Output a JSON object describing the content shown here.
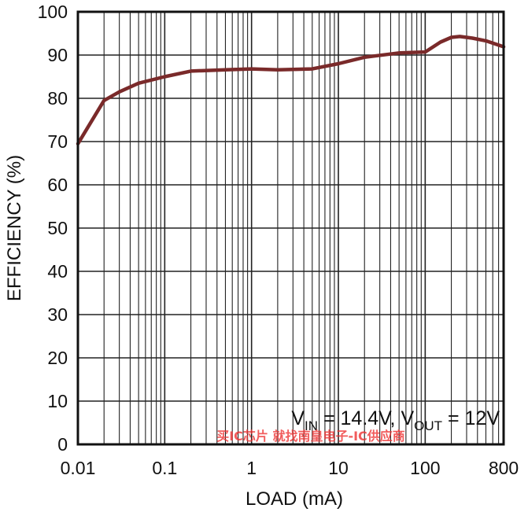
{
  "chart_data": {
    "type": "line",
    "xlabel": "LOAD (mA)",
    "ylabel": "EFFICIENCY (%)",
    "x_scale": "log",
    "xlim": [
      0.01,
      800
    ],
    "ylim": [
      0,
      100
    ],
    "grid": true,
    "x_tick_labels": [
      "0.01",
      "0.1",
      "1",
      "10",
      "100",
      "800"
    ],
    "y_tick_labels": [
      "0",
      "10",
      "20",
      "30",
      "40",
      "50",
      "60",
      "70",
      "80",
      "90",
      "100"
    ],
    "annotation": {
      "v_in_symbol": "V",
      "v_in_sub": "IN",
      "v_in_value": " = 14.4V, ",
      "v_out_symbol": "V",
      "v_out_sub": "OUT",
      "v_out_value": " = 12V"
    },
    "watermark": "买IC芯片 就找南皇电子-IC供应商",
    "series": [
      {
        "color": "#7a2a2a",
        "x": [
          0.01,
          0.02,
          0.03,
          0.05,
          0.1,
          0.2,
          0.5,
          1,
          2,
          5,
          10,
          20,
          50,
          100,
          150,
          200,
          250,
          350,
          500,
          800
        ],
        "y": [
          69.5,
          79.5,
          81.5,
          83.5,
          85.0,
          86.3,
          86.6,
          86.8,
          86.6,
          86.8,
          88.0,
          89.5,
          90.5,
          90.7,
          93.0,
          94.1,
          94.3,
          93.9,
          93.3,
          91.9
        ]
      }
    ]
  }
}
